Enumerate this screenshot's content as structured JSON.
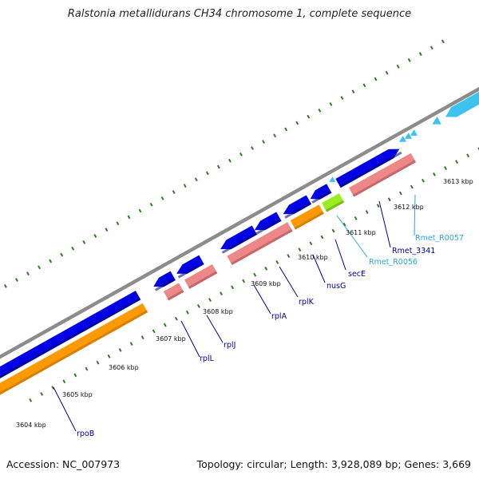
{
  "title": "Ralstonia metallidurans CH34 chromosome 1, complete sequence",
  "footer": {
    "accession": "Accession: NC_007973",
    "summary": "Topology: circular; Length: 3,928,089 bp; Genes: 3,669"
  },
  "colors": {
    "backbone": "#8c8c8c",
    "cds": "#0000e6",
    "gene": "#ee8888",
    "rrna_like_orange": "#ff9900",
    "green_feature": "#99ee22",
    "rna": "#3cc3ee",
    "tick": "#2e7d22",
    "label_dark": "#000099",
    "label_rna": "#2aa8d8"
  },
  "scale_labels": [
    "3604 kbp",
    "3605 kbp",
    "3606 kbp",
    "3607 kbp",
    "3608 kbp",
    "3609 kbp",
    "3610 kbp",
    "3611 kbp",
    "3612 kbp",
    "3613 kbp"
  ],
  "gene_labels": [
    {
      "name": "rpoB",
      "kind": "cds"
    },
    {
      "name": "rplL",
      "kind": "cds"
    },
    {
      "name": "rplJ",
      "kind": "cds"
    },
    {
      "name": "rplA",
      "kind": "cds"
    },
    {
      "name": "rplK",
      "kind": "cds"
    },
    {
      "name": "nusG",
      "kind": "cds"
    },
    {
      "name": "secE",
      "kind": "cds"
    },
    {
      "name": "Rmet_R0056",
      "kind": "rna"
    },
    {
      "name": "Rmet_3341",
      "kind": "cds"
    },
    {
      "name": "Rmet_R0057",
      "kind": "rna"
    }
  ]
}
